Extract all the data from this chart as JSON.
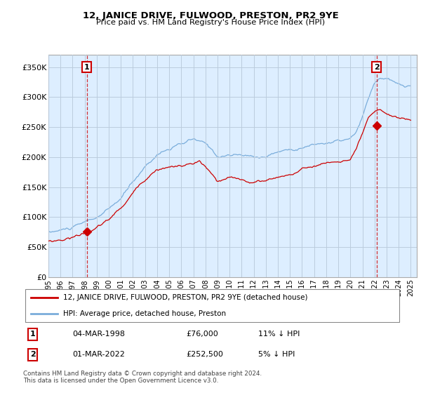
{
  "title": "12, JANICE DRIVE, FULWOOD, PRESTON, PR2 9YE",
  "subtitle": "Price paid vs. HM Land Registry's House Price Index (HPI)",
  "ylabel_ticks": [
    "£0",
    "£50K",
    "£100K",
    "£150K",
    "£200K",
    "£250K",
    "£300K",
    "£350K"
  ],
  "ytick_values": [
    0,
    50000,
    100000,
    150000,
    200000,
    250000,
    300000,
    350000
  ],
  "ylim": [
    0,
    370000
  ],
  "xlim_start": 1995.0,
  "xlim_end": 2025.5,
  "legend_line1": "12, JANICE DRIVE, FULWOOD, PRESTON, PR2 9YE (detached house)",
  "legend_line2": "HPI: Average price, detached house, Preston",
  "transaction1_date": "04-MAR-1998",
  "transaction1_price": "£76,000",
  "transaction1_hpi": "11% ↓ HPI",
  "transaction1_year": 1998.17,
  "transaction1_value": 76000,
  "transaction2_date": "01-MAR-2022",
  "transaction2_price": "£252,500",
  "transaction2_hpi": "5% ↓ HPI",
  "transaction2_year": 2022.17,
  "transaction2_value": 252500,
  "footer": "Contains HM Land Registry data © Crown copyright and database right 2024.\nThis data is licensed under the Open Government Licence v3.0.",
  "hpi_color": "#7aaddb",
  "price_color": "#cc0000",
  "dashed_color": "#cc0000",
  "background_color": "#ffffff",
  "chart_bg_color": "#ddeeff",
  "grid_color": "#bbccdd",
  "marker_color": "#cc0000"
}
